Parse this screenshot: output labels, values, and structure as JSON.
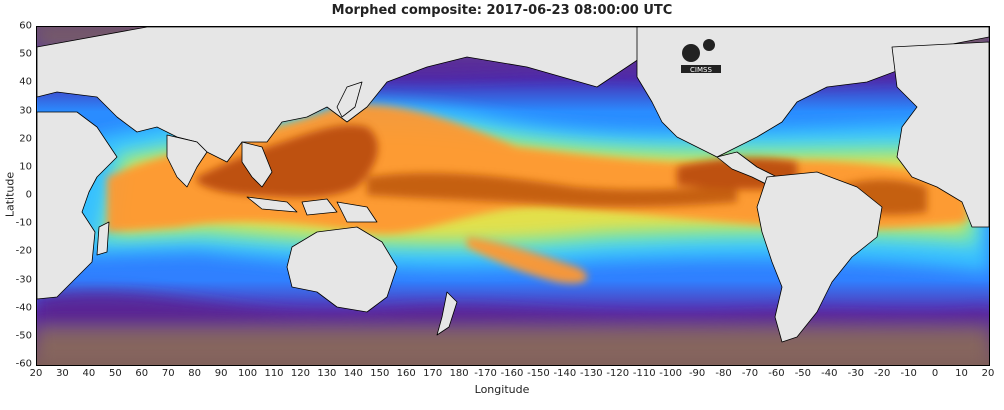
{
  "title": "Morphed composite: 2017-06-23 08:00:00 UTC",
  "chart_data": {
    "type": "heatmap",
    "title": "Morphed composite: 2017-06-23 08:00:00 UTC",
    "xlabel": "Longitude",
    "ylabel": "Latitude",
    "x_ticks": [
      "20",
      "30",
      "40",
      "50",
      "60",
      "70",
      "80",
      "90",
      "100",
      "110",
      "120",
      "130",
      "140",
      "150",
      "160",
      "170",
      "180",
      "-170",
      "-160",
      "-150",
      "-140",
      "-130",
      "-120",
      "-110",
      "-100",
      "-90",
      "-80",
      "-70",
      "-60",
      "-50",
      "-40",
      "-30",
      "-20",
      "-10",
      "0",
      "10",
      "20"
    ],
    "y_ticks": [
      "60",
      "50",
      "40",
      "30",
      "20",
      "10",
      "0",
      "-10",
      "-20",
      "-30",
      "-40",
      "-50",
      "-60"
    ],
    "xlim": [
      20,
      380
    ],
    "ylim": [
      -60,
      60
    ],
    "grid": false,
    "colormap": [
      "#6a5a6a",
      "#5a1f86",
      "#6a2fd6",
      "#3a7dff",
      "#36c8ff",
      "#6effa8",
      "#f0e640",
      "#ff9a2a",
      "#e0680c",
      "#a43a06"
    ],
    "land_color": "#e6e6e6",
    "missing_color": "#000000",
    "logo": "CIMSS"
  },
  "icons": {
    "logo": "cimss-logo"
  }
}
